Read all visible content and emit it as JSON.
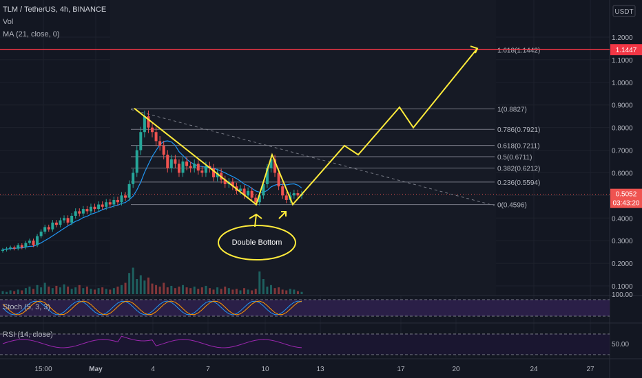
{
  "header": {
    "symbol_line": "TLM / TetherUS, 4h, BINANCE",
    "vol_label": "Vol",
    "ma_label": "MA (21, close, 0)"
  },
  "indicators": {
    "stoch_label": "Stoch (5, 3, 3)",
    "rsi_label": "RSI (14, close)",
    "stoch_axis_label": "100.00",
    "rsi_axis_label": "50.00"
  },
  "price_axis": {
    "currency": "USDT",
    "current_price": "0.5052",
    "countdown": "03:43:20",
    "resistance_price": "1.1447"
  },
  "annotation": {
    "double_bottom": "Double Bottom"
  },
  "colors": {
    "background": "#131722",
    "up": "#26a69a",
    "down": "#ef5350",
    "ma": "#2196f3",
    "drawing": "#ffeb3b",
    "fib": "#787b86",
    "resistance": "#f23645",
    "stoch_fill": "#2a1f47",
    "rsi_line": "#9c27b0"
  },
  "chart_data": {
    "type": "candlestick",
    "title": "TLM / TetherUS, 4h, BINANCE",
    "y_ticks": [
      0.1,
      0.2,
      0.3,
      0.4,
      0.5,
      0.6,
      0.7,
      0.8,
      0.9,
      1.0,
      1.1,
      1.2
    ],
    "y_tick_labels": [
      "0.1000",
      "0.2000",
      "0.3000",
      "0.4000",
      "0.5000",
      "0.6000",
      "0.7000",
      "0.8000",
      "0.9000",
      "1.0000",
      "1.1000",
      "1.2000"
    ],
    "ylim": [
      0.08,
      1.3
    ],
    "x_tick_labels": [
      "15:00",
      "May",
      "4",
      "7",
      "10",
      "13",
      "17",
      "20",
      "24",
      "27"
    ],
    "fib_levels": [
      {
        "label": "1(0.8827)",
        "value": 0.8827
      },
      {
        "label": "0.786(0.7921)",
        "value": 0.7921
      },
      {
        "label": "0.618(0.7211)",
        "value": 0.7211
      },
      {
        "label": "0.5(0.6711)",
        "value": 0.6711
      },
      {
        "label": "0.382(0.6212)",
        "value": 0.6212
      },
      {
        "label": "0.236(0.5594)",
        "value": 0.5594
      },
      {
        "label": "0(0.4596)",
        "value": 0.4596
      }
    ],
    "fib_extension": {
      "label": "1.618(1.1442)",
      "value": 1.1442
    },
    "resistance_line": 1.1447,
    "last_price": 0.5052,
    "candles_close_path": [
      0.26,
      0.265,
      0.27,
      0.265,
      0.28,
      0.27,
      0.29,
      0.3,
      0.28,
      0.32,
      0.34,
      0.36,
      0.35,
      0.38,
      0.37,
      0.39,
      0.4,
      0.38,
      0.41,
      0.43,
      0.42,
      0.44,
      0.43,
      0.45,
      0.44,
      0.46,
      0.45,
      0.47,
      0.46,
      0.48,
      0.47,
      0.5,
      0.49,
      0.55,
      0.6,
      0.7,
      0.78,
      0.85,
      0.8,
      0.78,
      0.74,
      0.72,
      0.68,
      0.62,
      0.66,
      0.64,
      0.6,
      0.65,
      0.63,
      0.62,
      0.64,
      0.61,
      0.6,
      0.63,
      0.62,
      0.58,
      0.6,
      0.57,
      0.55,
      0.56,
      0.54,
      0.52,
      0.53,
      0.5,
      0.52,
      0.49,
      0.47,
      0.5,
      0.55,
      0.62,
      0.66,
      0.6,
      0.54,
      0.5,
      0.48,
      0.5,
      0.51,
      0.5,
      0.505
    ],
    "volumes": [
      0.04,
      0.03,
      0.05,
      0.04,
      0.06,
      0.05,
      0.08,
      0.1,
      0.07,
      0.12,
      0.09,
      0.15,
      0.1,
      0.08,
      0.11,
      0.09,
      0.13,
      0.1,
      0.07,
      0.09,
      0.12,
      0.08,
      0.1,
      0.07,
      0.06,
      0.08,
      0.09,
      0.07,
      0.06,
      0.08,
      0.1,
      0.12,
      0.15,
      0.28,
      0.35,
      0.2,
      0.25,
      0.18,
      0.22,
      0.14,
      0.12,
      0.1,
      0.15,
      0.09,
      0.11,
      0.08,
      0.1,
      0.12,
      0.09,
      0.08,
      0.1,
      0.07,
      0.09,
      0.11,
      0.08,
      0.06,
      0.09,
      0.07,
      0.1,
      0.08,
      0.06,
      0.07,
      0.05,
      0.08,
      0.06,
      0.05,
      0.07,
      0.3,
      0.2,
      0.1,
      0.12,
      0.08,
      0.09,
      0.06,
      0.05,
      0.07,
      0.06,
      0.04,
      0.03
    ]
  }
}
